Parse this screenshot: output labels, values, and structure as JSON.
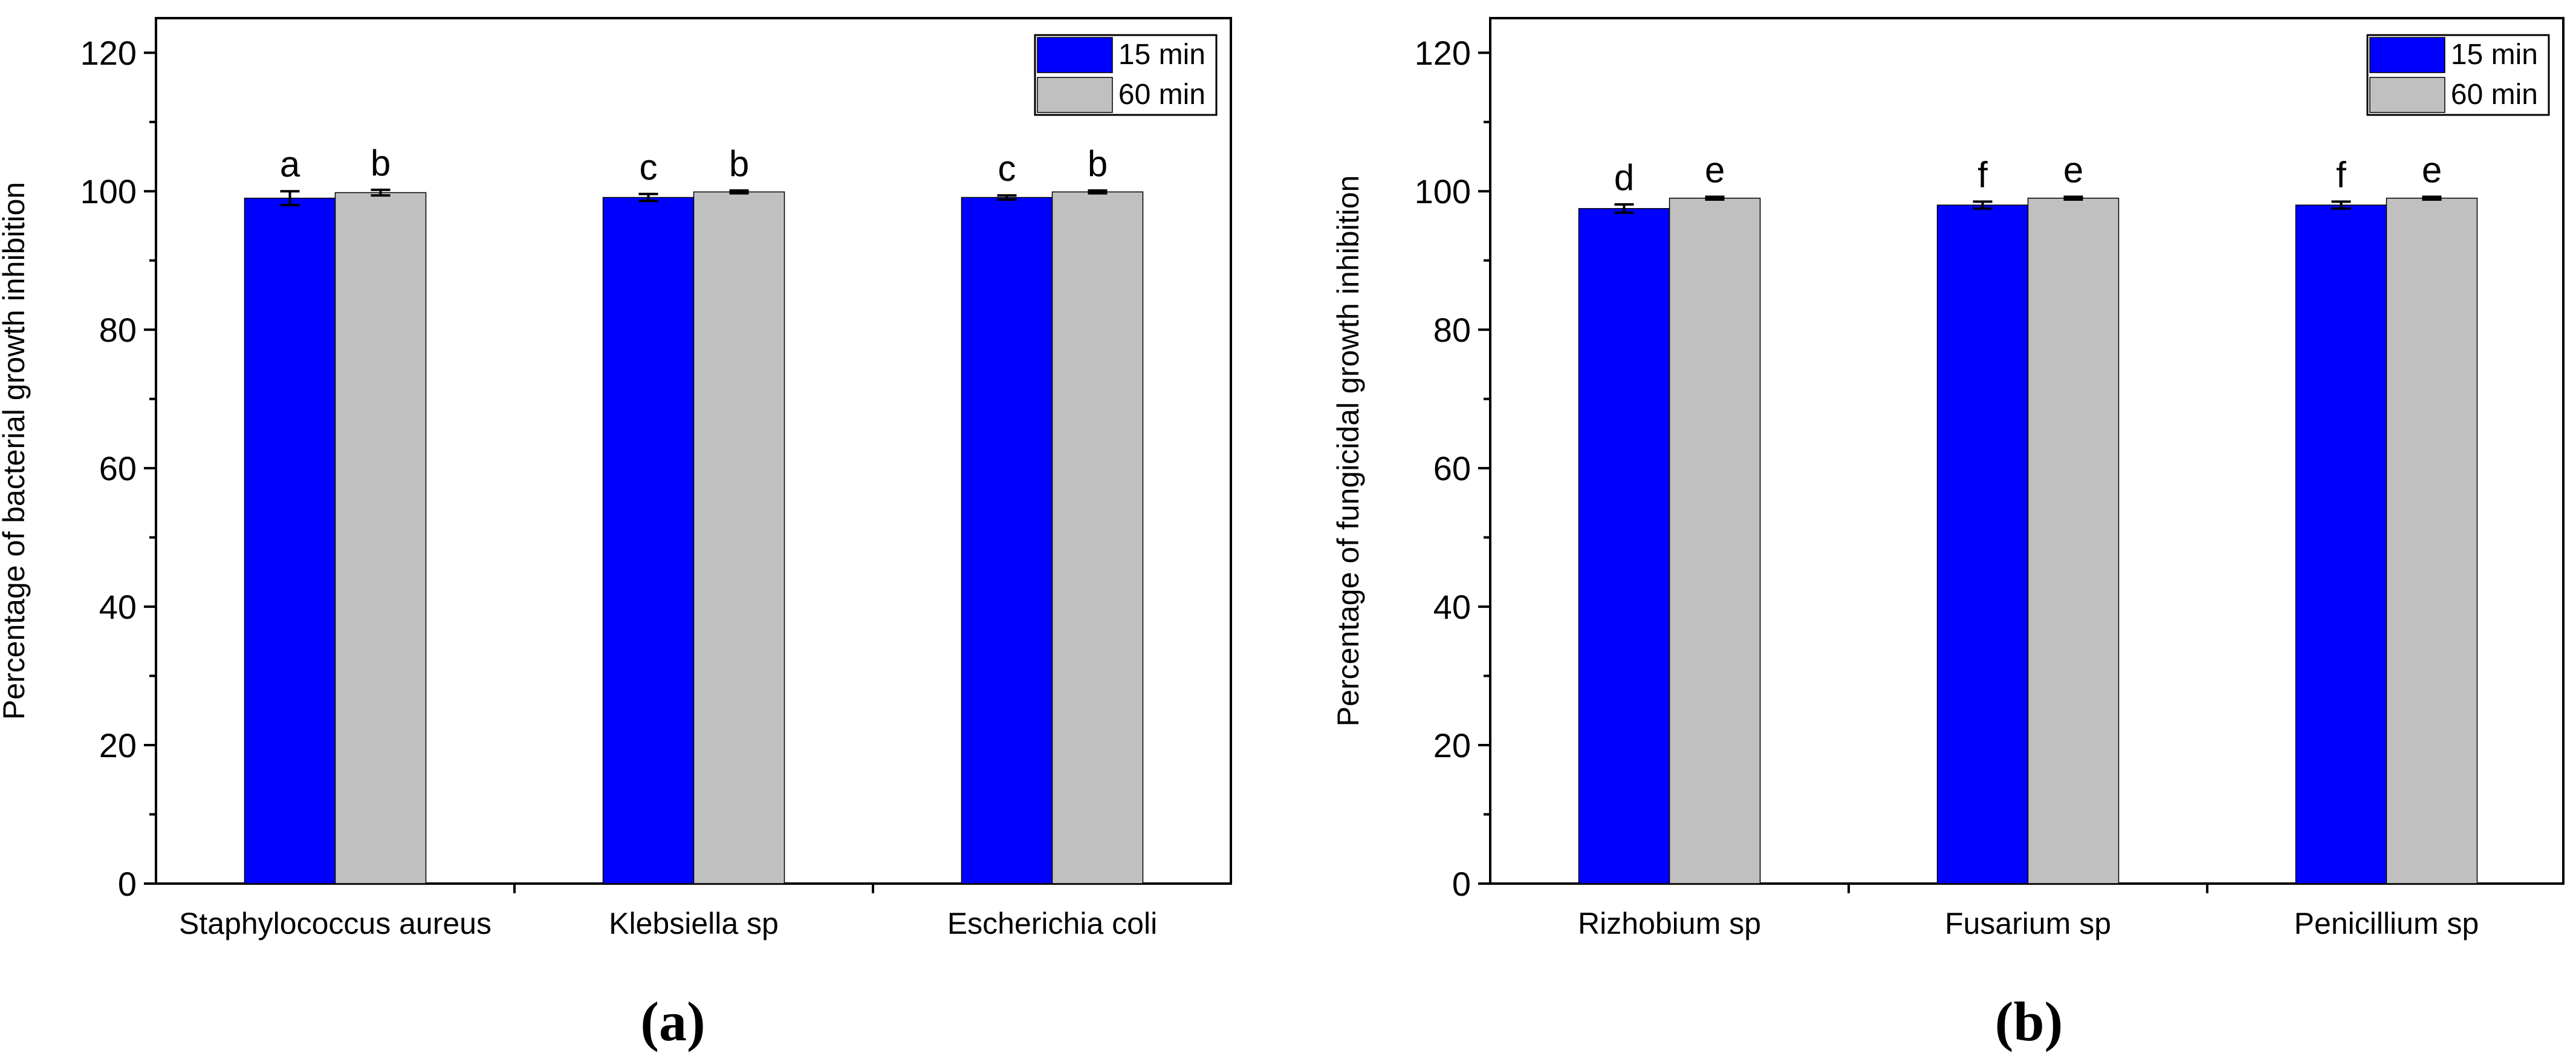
{
  "figure_labels": [
    "(a)",
    "(b)"
  ],
  "colors": {
    "series_15": "#0000ff",
    "series_60": "#c0c0c0",
    "axis": "#000000"
  },
  "chart_data": [
    {
      "type": "bar",
      "panel": "(a)",
      "title": "",
      "xlabel": "",
      "ylabel": "Percentage of bacterial growth inhibition",
      "categories": [
        "Staphylococcus aureus",
        "Klebsiella sp",
        "Escherichia coli"
      ],
      "series": [
        {
          "name": "15 min",
          "values": [
            99.0,
            99.1,
            99.1
          ],
          "errors": [
            1.0,
            0.5,
            0.3
          ],
          "labels": [
            "a",
            "c",
            "c"
          ]
        },
        {
          "name": "60 min",
          "values": [
            99.8,
            99.9,
            99.9
          ],
          "errors": [
            0.4,
            0.2,
            0.2
          ],
          "labels": [
            "b",
            "b",
            "b"
          ]
        }
      ],
      "ylim": [
        0,
        125
      ],
      "yticks": [
        0,
        20,
        40,
        60,
        80,
        100,
        120
      ],
      "grid": false,
      "legend": "top-right"
    },
    {
      "type": "bar",
      "panel": "(b)",
      "title": "",
      "xlabel": "",
      "ylabel": "Percentage of fungicidal growth inhibition",
      "categories": [
        "Rizhobium sp",
        "Fusarium sp",
        "Penicillium sp"
      ],
      "series": [
        {
          "name": "15 min",
          "values": [
            97.5,
            98.0,
            98.0
          ],
          "errors": [
            0.6,
            0.5,
            0.5
          ],
          "labels": [
            "d",
            "f",
            "f"
          ]
        },
        {
          "name": "60 min",
          "values": [
            99.0,
            99.0,
            99.0
          ],
          "errors": [
            0.2,
            0.2,
            0.2
          ],
          "labels": [
            "e",
            "e",
            "e"
          ]
        }
      ],
      "ylim": [
        0,
        125
      ],
      "yticks": [
        0,
        20,
        40,
        60,
        80,
        100,
        120
      ],
      "grid": false,
      "legend": "top-right"
    }
  ]
}
